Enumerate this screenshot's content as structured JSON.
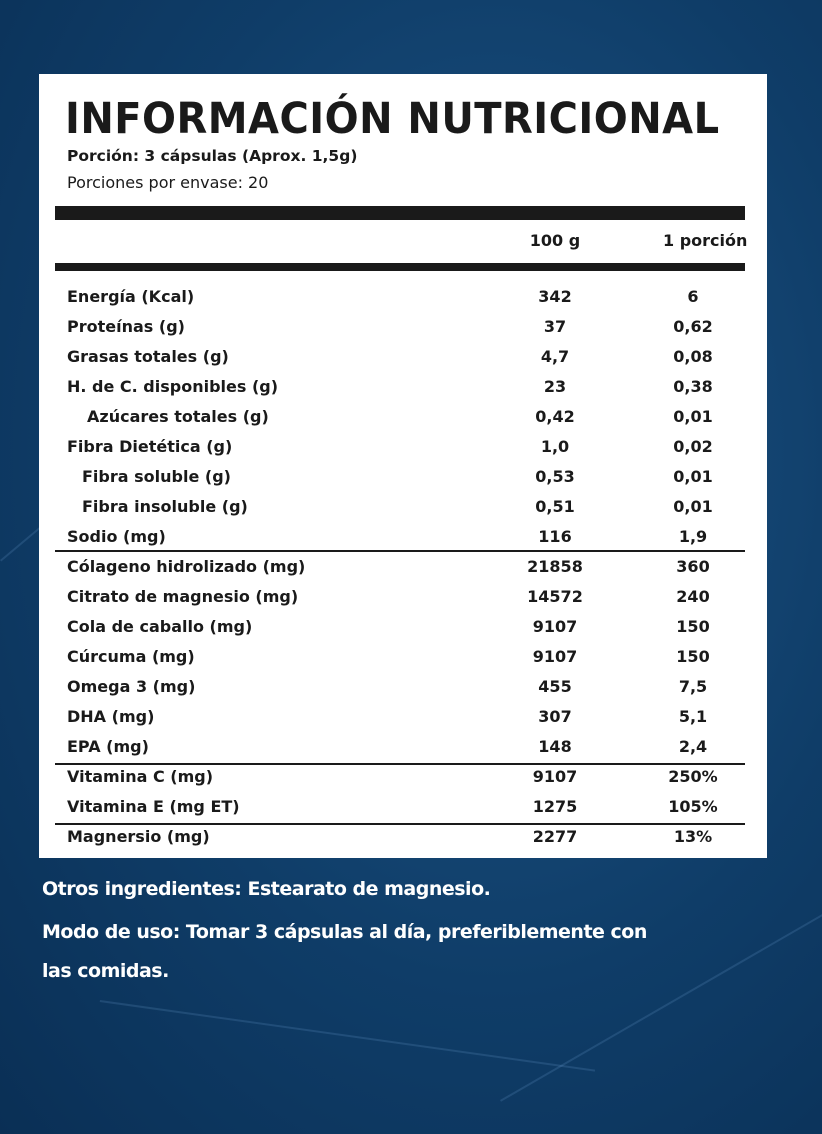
{
  "title": "INFORMACIÓN NUTRICIONAL",
  "serving": "Porción: 3 cápsulas (Aprox. 1,5g)",
  "servings_per_container": "Porciones por envase: 20",
  "columns": [
    "100 g",
    "1 porción"
  ],
  "rows": [
    {
      "label": "Energía (Kcal)",
      "per100": "342",
      "portion": "6",
      "indent": 0
    },
    {
      "label": "Proteínas (g)",
      "per100": "37",
      "portion": "0,62",
      "indent": 0
    },
    {
      "label": "Grasas totales (g)",
      "per100": "4,7",
      "portion": "0,08",
      "indent": 0
    },
    {
      "label": "H. de C. disponibles (g)",
      "per100": "23",
      "portion": "0,38",
      "indent": 0
    },
    {
      "label": "Azúcares totales (g)",
      "per100": "0,42",
      "portion": "0,01",
      "indent": 2
    },
    {
      "label": "Fibra Dietética (g)",
      "per100": "1,0",
      "portion": "0,02",
      "indent": 0
    },
    {
      "label": "Fibra soluble (g)",
      "per100": "0,53",
      "portion": "0,01",
      "indent": 1
    },
    {
      "label": "Fibra insoluble (g)",
      "per100": "0,51",
      "portion": "0,01",
      "indent": 1
    },
    {
      "label": "Sodio (mg)",
      "per100": "116",
      "portion": "1,9",
      "indent": 0
    },
    {
      "label": "Cólageno hidrolizado (mg)",
      "per100": "21858",
      "portion": "360",
      "indent": 0
    },
    {
      "label": "Citrato de magnesio (mg)",
      "per100": "14572",
      "portion": "240",
      "indent": 0
    },
    {
      "label": "Cola de caballo (mg)",
      "per100": "9107",
      "portion": "150",
      "indent": 0
    },
    {
      "label": "Cúrcuma (mg)",
      "per100": "9107",
      "portion": "150",
      "indent": 0
    },
    {
      "label": "Omega 3 (mg)",
      "per100": "455",
      "portion": "7,5",
      "indent": 0
    },
    {
      "label": "DHA (mg)",
      "per100": "307",
      "portion": "5,1",
      "indent": 0
    },
    {
      "label": "EPA (mg)",
      "per100": "148",
      "portion": "2,4",
      "indent": 0
    },
    {
      "label": "Vitamina C (mg)",
      "per100": "9107",
      "portion": "250%",
      "indent": 0
    },
    {
      "label": "Vitamina E (mg ET)",
      "per100": "1275",
      "portion": "105%",
      "indent": 0
    },
    {
      "label": "Magnersio (mg)",
      "per100": "2277",
      "portion": "13%",
      "indent": 0
    }
  ],
  "other_ingredients": "Otros ingredientes: Estearato de magnesio.",
  "usage_line1": "Modo de uso: Tomar 3 cápsulas al día, preferiblemente con",
  "usage_line2": "las comidas.",
  "colors": {
    "background": "#0f3d68",
    "card": "#ffffff",
    "text": "#1a1a1a"
  }
}
